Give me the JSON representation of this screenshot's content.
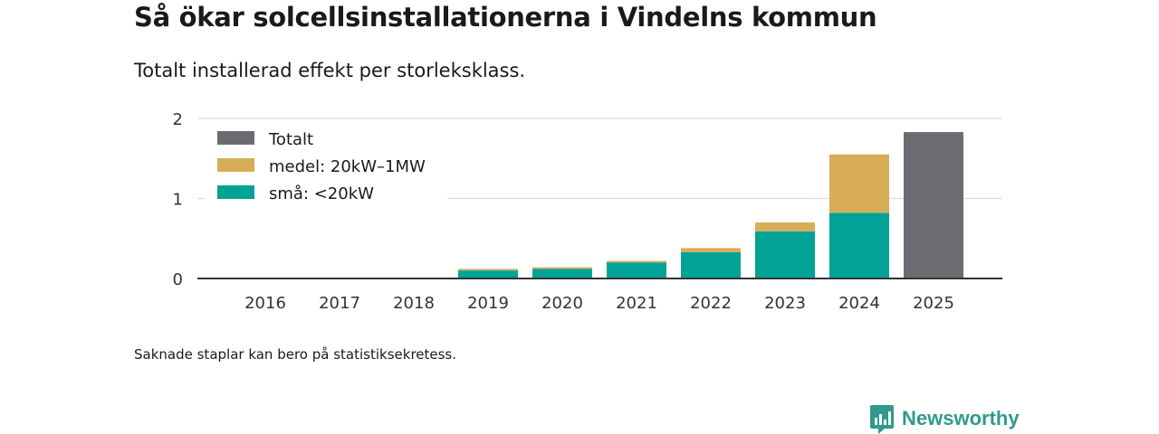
{
  "header": {
    "title": "Så ökar solcellsinstallationerna i Vindelns kommun",
    "subtitle": "Totalt installerad effekt per storleksklass."
  },
  "footer": {
    "note": "Saknade staplar kan bero på statistiksekretess.",
    "brand": "Newsworthy"
  },
  "colors": {
    "totalt": "#6c6b71",
    "medel": "#d8ad57",
    "sma": "#00a396",
    "brand": "#2f9a8d",
    "grid": "#dcdcdc",
    "axis": "#333333"
  },
  "chart_data": {
    "type": "bar",
    "stacked": true,
    "title": "Så ökar solcellsinstallationerna i Vindelns kommun",
    "subtitle": "Totalt installerad effekt per storleksklass.",
    "xlabel": "",
    "ylabel": "",
    "ylim": [
      0,
      2
    ],
    "yticks": [
      0,
      1,
      2
    ],
    "grid": true,
    "legend_position": "top-left",
    "categories": [
      "2016",
      "2017",
      "2018",
      "2019",
      "2020",
      "2021",
      "2022",
      "2023",
      "2024",
      "2025"
    ],
    "series": [
      {
        "name": "Totalt",
        "key": "totalt",
        "values": [
          null,
          null,
          null,
          null,
          null,
          null,
          null,
          null,
          null,
          1.83
        ]
      },
      {
        "name": "medel: 20kW–1MW",
        "key": "medel",
        "values": [
          null,
          null,
          null,
          0.02,
          0.02,
          0.02,
          0.05,
          0.11,
          0.73,
          null
        ]
      },
      {
        "name": "små: <20kW",
        "key": "sma",
        "values": [
          null,
          null,
          null,
          0.1,
          0.12,
          0.2,
          0.33,
          0.59,
          0.82,
          null
        ]
      }
    ],
    "legend_order": [
      "totalt",
      "medel",
      "sma"
    ],
    "stack_order": [
      "sma",
      "medel",
      "totalt"
    ]
  }
}
